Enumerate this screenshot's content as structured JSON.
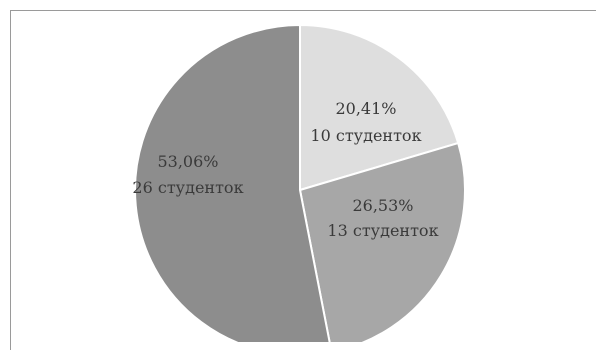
{
  "chart_data": {
    "type": "pie",
    "slices": [
      {
        "percent_label": "20,41%",
        "count_label": "10 студенток",
        "value": 10,
        "color": "#dedede"
      },
      {
        "percent_label": "26,53%",
        "count_label": "13 студенток",
        "value": 13,
        "color": "#a7a7a7"
      },
      {
        "percent_label": "53,06%",
        "count_label": "26 студенток",
        "value": 26,
        "color": "#8d8d8d"
      }
    ]
  }
}
